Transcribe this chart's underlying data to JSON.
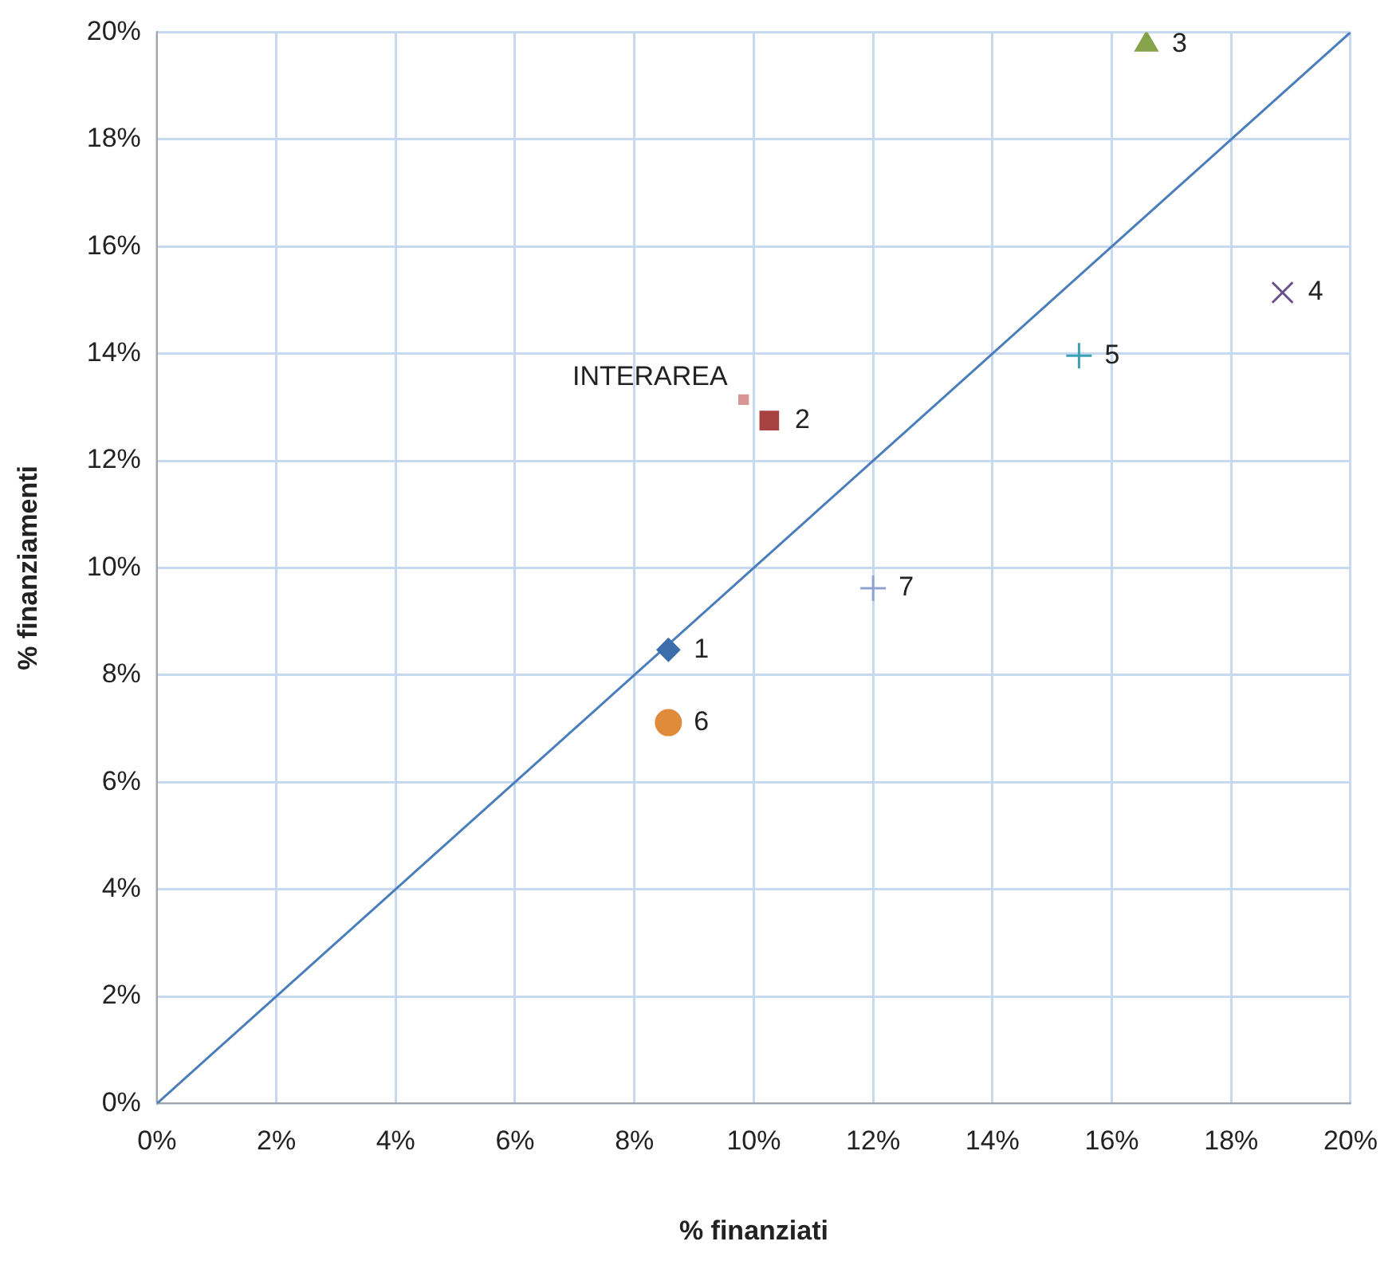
{
  "chart_data": {
    "type": "scatter",
    "xlabel": "% finanziati",
    "ylabel": "% finanziamenti",
    "xlim": [
      0,
      20
    ],
    "ylim": [
      0,
      20
    ],
    "xticks": [
      {
        "value": 0,
        "label": "0%"
      },
      {
        "value": 2,
        "label": "2%"
      },
      {
        "value": 4,
        "label": "4%"
      },
      {
        "value": 6,
        "label": "6%"
      },
      {
        "value": 8,
        "label": "8%"
      },
      {
        "value": 10,
        "label": "10%"
      },
      {
        "value": 12,
        "label": "12%"
      },
      {
        "value": 14,
        "label": "14%"
      },
      {
        "value": 16,
        "label": "16%"
      },
      {
        "value": 18,
        "label": "18%"
      },
      {
        "value": 20,
        "label": "20%"
      }
    ],
    "yticks": [
      {
        "value": 0,
        "label": "0%"
      },
      {
        "value": 2,
        "label": "2%"
      },
      {
        "value": 4,
        "label": "4%"
      },
      {
        "value": 6,
        "label": "6%"
      },
      {
        "value": 8,
        "label": "8%"
      },
      {
        "value": 10,
        "label": "10%"
      },
      {
        "value": 12,
        "label": "12%"
      },
      {
        "value": 14,
        "label": "14%"
      },
      {
        "value": 16,
        "label": "16%"
      },
      {
        "value": 18,
        "label": "18%"
      },
      {
        "value": 20,
        "label": "20%"
      }
    ],
    "grid": true,
    "legend": false,
    "series": [
      {
        "name": "1",
        "color": "#3c6eac",
        "marker": "diamond",
        "x": [
          8.57
        ],
        "values": [
          8.47
        ]
      },
      {
        "name": "2",
        "color": "#a84240",
        "marker": "square",
        "x": [
          10.26
        ],
        "values": [
          12.75
        ]
      },
      {
        "name": "3",
        "color": "#86a24a",
        "marker": "triangle",
        "x": [
          16.58
        ],
        "values": [
          19.77
        ]
      },
      {
        "name": "4",
        "color": "#6b4f8c",
        "marker": "x",
        "x": [
          18.86
        ],
        "values": [
          15.14
        ]
      },
      {
        "name": "5",
        "color": "#3aa0b4",
        "marker": "cross",
        "x": [
          15.45
        ],
        "values": [
          13.96
        ]
      },
      {
        "name": "6",
        "color": "#e08b3a",
        "marker": "circle",
        "x": [
          8.57
        ],
        "values": [
          7.11
        ]
      },
      {
        "name": "7",
        "color": "#8fa4d0",
        "marker": "cross",
        "x": [
          12.0
        ],
        "values": [
          9.62
        ]
      },
      {
        "name": "INTERAREA",
        "color": "#d99594",
        "marker": "square",
        "x": [
          9.83
        ],
        "values": [
          13.14
        ]
      },
      {
        "type": "line",
        "color": "#4a7ebb",
        "marker": "none",
        "x": [
          0,
          20
        ],
        "values": [
          0,
          20
        ]
      }
    ]
  }
}
